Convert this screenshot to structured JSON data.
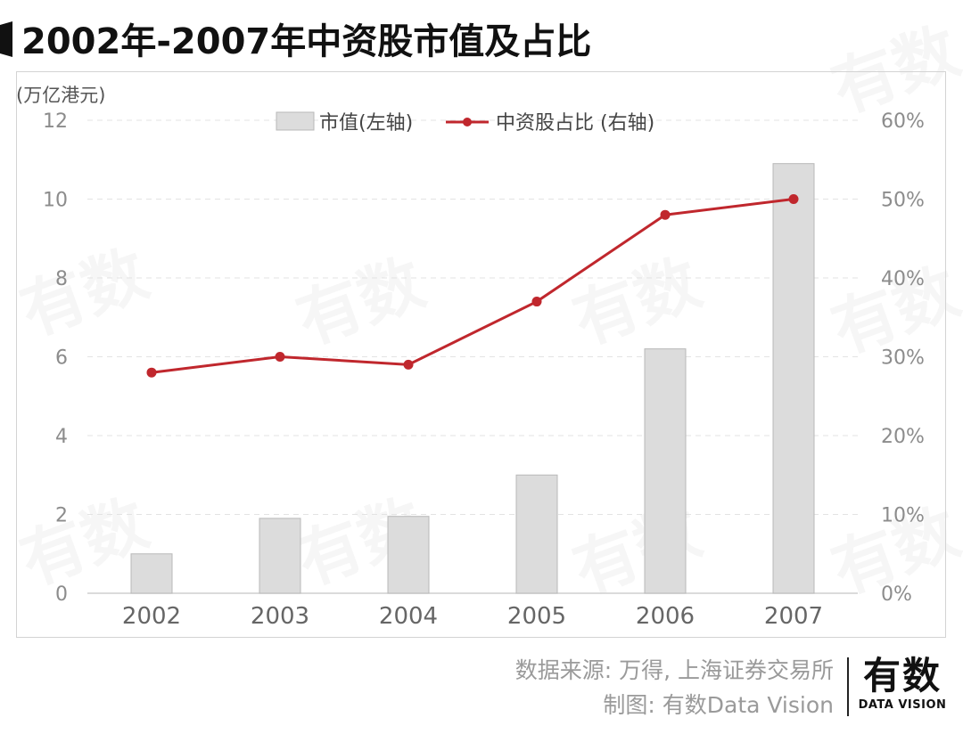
{
  "header": {
    "title": "2002年-2007年中资股市值及占比"
  },
  "footer": {
    "source": "数据来源: 万得, 上海证券交易所",
    "made_by": "制图: 有数Data Vision"
  },
  "logo": {
    "main": "有数",
    "sub": "DATA VISION"
  },
  "watermark": {
    "text": "有数"
  },
  "colors": {
    "bar": "#dcdcdc",
    "bar_stroke": "#b8b8b8",
    "line": "#c0272d",
    "axis_text": "#8c8c8c",
    "grid": "#e3e3e3"
  },
  "chart_data": {
    "type": "bar",
    "title": "2002年-2007年中资股市值及占比",
    "categories": [
      "2002",
      "2003",
      "2004",
      "2005",
      "2006",
      "2007"
    ],
    "series": [
      {
        "name": "市值(左轴)",
        "type": "bar",
        "axis": "left",
        "values": [
          1.0,
          1.9,
          1.95,
          3.0,
          6.2,
          10.9
        ]
      },
      {
        "name": "中资股占比 (右轴)",
        "type": "line",
        "axis": "right",
        "values": [
          28,
          30,
          29,
          37,
          48,
          50
        ]
      }
    ],
    "y_left": {
      "label": "(万亿港元)",
      "ylim": [
        0,
        12
      ],
      "ticks": [
        "0",
        "2",
        "4",
        "6",
        "8",
        "10",
        "12"
      ]
    },
    "y_right": {
      "ylim": [
        0,
        60
      ],
      "ticks": [
        "0%",
        "10%",
        "20%",
        "30%",
        "40%",
        "50%",
        "60%"
      ]
    },
    "grid": true,
    "legend_position": "top-center"
  }
}
